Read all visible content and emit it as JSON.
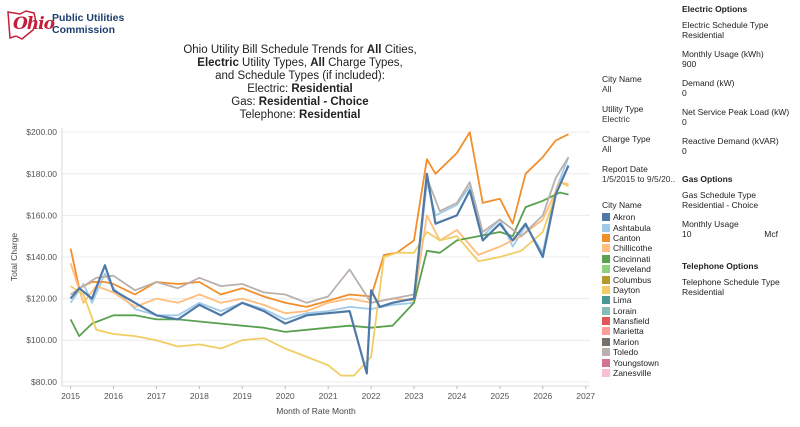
{
  "logo": {
    "mark": "Ohio",
    "line1": "Public Utilities",
    "line2": "Commission"
  },
  "title": {
    "line1a": "Ohio Utility Bill Schedule Trends for ",
    "line1b": "All",
    "line1c": " Cities,",
    "line2a": "Electric",
    "line2b": " Utility Types, ",
    "line2c": "All",
    "line2d": " Charge Types,",
    "line3": "and Schedule Types (if included):",
    "line4a": "Electric: ",
    "line4b": "Residential",
    "line5a": "Gas: ",
    "line5b": "Residential - Choice",
    "line6a": "Telephone: ",
    "line6b": "Residential"
  },
  "filters": [
    {
      "label": "City Name",
      "value": "All"
    },
    {
      "label": "Utility Type",
      "value": "Electric"
    },
    {
      "label": "Charge Type",
      "value": "All"
    },
    {
      "label": "Report Date",
      "value": "1/5/2015 to 9/5/20.."
    }
  ],
  "legend": {
    "title": "City Name",
    "items": [
      {
        "name": "Akron",
        "color": "#4e79a7"
      },
      {
        "name": "Ashtabula",
        "color": "#a0cbe8"
      },
      {
        "name": "Canton",
        "color": "#f28e2b"
      },
      {
        "name": "Chillicothe",
        "color": "#ffbe7d"
      },
      {
        "name": "Cincinnati",
        "color": "#59a14f"
      },
      {
        "name": "Cleveland",
        "color": "#8cd17d"
      },
      {
        "name": "Columbus",
        "color": "#b6992d"
      },
      {
        "name": "Dayton",
        "color": "#f1ce63"
      },
      {
        "name": "Lima",
        "color": "#499894"
      },
      {
        "name": "Lorain",
        "color": "#86bcb6"
      },
      {
        "name": "Mansfield",
        "color": "#e15759"
      },
      {
        "name": "Marietta",
        "color": "#ff9d9a"
      },
      {
        "name": "Marion",
        "color": "#79706e"
      },
      {
        "name": "Toledo",
        "color": "#bab0ac"
      },
      {
        "name": "Youngstown",
        "color": "#d37295"
      },
      {
        "name": "Zanesville",
        "color": "#fabfd2"
      }
    ]
  },
  "options": {
    "electric": {
      "header": "Electric Options",
      "fields": [
        {
          "label": "Electric Schedule Type",
          "value": "Residential"
        },
        {
          "label": "Monthly Usage (kWh)",
          "value": "900"
        },
        {
          "label": "Demand (kW)",
          "value": "0"
        },
        {
          "label": "Net Service Peak Load (kW)",
          "value": "0"
        },
        {
          "label": "Reactive Demand (kVAR)",
          "value": "0"
        }
      ]
    },
    "gas": {
      "header": "Gas Options",
      "schedule_label": "Gas Schedule Type",
      "schedule_value": "Residential - Choice",
      "usage_label": "Monthly Usage",
      "usage_value": "10",
      "usage_unit": "Mcf"
    },
    "telephone": {
      "header": "Telephone Options",
      "schedule_label": "Telephone Schedule Type",
      "schedule_value": "Residential"
    }
  },
  "chart_data": {
    "type": "line",
    "xlabel": "Month of Rate Month",
    "ylabel": "Total Charge",
    "xlim": [
      2014.8,
      2027.1
    ],
    "ylim": [
      78,
      202
    ],
    "y_ticks": [
      80,
      100,
      120,
      140,
      160,
      180,
      200
    ],
    "y_tick_labels": [
      "$80.00",
      "$100.00",
      "$120.00",
      "$140.00",
      "$160.00",
      "$180.00",
      "$200.00"
    ],
    "x_ticks": [
      2015,
      2016,
      2017,
      2018,
      2019,
      2020,
      2021,
      2022,
      2023,
      2024,
      2025,
      2026,
      2027
    ],
    "x_tick_labels": [
      "2015",
      "2016",
      "2017",
      "2018",
      "2019",
      "2020",
      "2021",
      "2022",
      "2023",
      "2024",
      "2025",
      "2026",
      "2027"
    ],
    "grid": "horizontal",
    "series": [
      {
        "name": "Ashtabula",
        "color": "#a0cbe8",
        "x": [
          2015.0,
          2015.3,
          2015.5,
          2015.8,
          2016.0,
          2016.5,
          2017.0,
          2017.5,
          2018.0,
          2018.5,
          2019.0,
          2019.5,
          2020.0,
          2020.5,
          2021.0,
          2021.5,
          2022.0,
          2022.5,
          2023.0,
          2023.3,
          2023.5,
          2024.0,
          2024.3,
          2024.6,
          2025.0,
          2025.3,
          2025.6,
          2026.0,
          2026.3,
          2026.6
        ],
        "y": [
          118,
          127,
          118,
          132,
          125,
          115,
          112,
          112,
          118,
          114,
          118,
          115,
          110,
          113,
          114,
          116,
          115,
          117,
          118,
          176,
          160,
          165,
          174,
          150,
          158,
          145,
          155,
          142,
          172,
          188
        ]
      },
      {
        "name": "Canton",
        "color": "#f28e2b",
        "x": [
          2015.0,
          2015.2,
          2015.5,
          2015.8,
          2016.0,
          2016.5,
          2017.0,
          2017.5,
          2018.0,
          2018.5,
          2019.0,
          2019.5,
          2020.0,
          2020.5,
          2021.0,
          2021.5,
          2022.0,
          2022.3,
          2022.6,
          2023.0,
          2023.3,
          2023.5,
          2024.0,
          2024.3,
          2024.6,
          2025.0,
          2025.3,
          2025.6,
          2026.0,
          2026.3,
          2026.6
        ],
        "y": [
          144,
          125,
          128,
          128,
          127,
          122,
          128,
          127,
          128,
          122,
          125,
          121,
          118,
          116,
          119,
          122,
          121,
          141,
          142,
          148,
          187,
          180,
          190,
          200,
          166,
          168,
          156,
          180,
          188,
          196,
          199
        ]
      },
      {
        "name": "Chillicothe",
        "color": "#ffbe7d",
        "x": [
          2015.0,
          2015.3,
          2015.6,
          2016.0,
          2016.5,
          2017.0,
          2017.5,
          2018.0,
          2018.5,
          2019.0,
          2019.5,
          2020.0,
          2020.5,
          2021.0,
          2021.5,
          2022.0,
          2022.5,
          2023.0,
          2023.3,
          2023.6,
          2024.0,
          2024.5,
          2025.0,
          2025.5,
          2026.0,
          2026.4,
          2026.6
        ],
        "y": [
          137,
          118,
          126,
          123,
          116,
          120,
          118,
          122,
          118,
          120,
          117,
          113,
          114,
          118,
          120,
          118,
          120,
          119,
          160,
          148,
          153,
          141,
          145,
          150,
          158,
          176,
          175
        ]
      },
      {
        "name": "Cincinnati",
        "color": "#59a14f",
        "x": [
          2015.0,
          2015.2,
          2015.5,
          2016.0,
          2016.5,
          2017.0,
          2017.5,
          2018.0,
          2018.5,
          2019.0,
          2019.5,
          2020.0,
          2020.5,
          2021.0,
          2021.5,
          2022.0,
          2022.5,
          2023.0,
          2023.3,
          2023.6,
          2024.0,
          2024.5,
          2025.0,
          2025.3,
          2025.6,
          2026.0,
          2026.4,
          2026.6
        ],
        "y": [
          110,
          102,
          108,
          112,
          112,
          110,
          110,
          109,
          108,
          107,
          106,
          104,
          105,
          106,
          107,
          106,
          107,
          118,
          143,
          142,
          148,
          150,
          152,
          150,
          164,
          167,
          171,
          170
        ]
      },
      {
        "name": "Dayton",
        "color": "#f1ce63",
        "x": [
          2015.0,
          2015.3,
          2015.6,
          2016.0,
          2016.5,
          2017.0,
          2017.5,
          2018.0,
          2018.5,
          2019.0,
          2019.5,
          2020.0,
          2020.5,
          2021.0,
          2021.3,
          2021.6,
          2022.0,
          2022.3,
          2022.6,
          2023.0,
          2023.3,
          2023.6,
          2024.0,
          2024.5,
          2025.0,
          2025.5,
          2026.0,
          2026.4,
          2026.6
        ],
        "y": [
          126,
          122,
          105,
          103,
          102,
          100,
          97,
          98,
          96,
          100,
          101,
          96,
          92,
          88,
          83,
          83,
          92,
          140,
          142,
          142,
          152,
          148,
          150,
          138,
          140,
          143,
          152,
          176,
          174
        ]
      },
      {
        "name": "Toledo",
        "color": "#bab0ac",
        "x": [
          2015.0,
          2015.3,
          2015.6,
          2016.0,
          2016.5,
          2017.0,
          2017.5,
          2018.0,
          2018.5,
          2019.0,
          2019.5,
          2020.0,
          2020.5,
          2021.0,
          2021.5,
          2022.0,
          2022.5,
          2023.0,
          2023.3,
          2023.6,
          2024.0,
          2024.3,
          2024.6,
          2025.0,
          2025.5,
          2026.0,
          2026.3,
          2026.6
        ],
        "y": [
          122,
          126,
          130,
          131,
          124,
          128,
          125,
          130,
          126,
          127,
          123,
          122,
          118,
          121,
          134,
          118,
          120,
          122,
          178,
          162,
          166,
          176,
          152,
          158,
          150,
          160,
          178,
          188
        ]
      },
      {
        "name": "Akron",
        "color": "#4e79a7",
        "x": [
          2015.0,
          2015.2,
          2015.5,
          2015.8,
          2016.0,
          2016.5,
          2017.0,
          2017.5,
          2018.0,
          2018.5,
          2019.0,
          2019.5,
          2020.0,
          2020.5,
          2021.0,
          2021.5,
          2021.9,
          2022.0,
          2022.2,
          2022.5,
          2023.0,
          2023.3,
          2023.5,
          2024.0,
          2024.3,
          2024.6,
          2025.0,
          2025.3,
          2025.6,
          2026.0,
          2026.3,
          2026.6
        ],
        "y": [
          120,
          125,
          120,
          136,
          124,
          118,
          112,
          110,
          117,
          112,
          118,
          114,
          108,
          112,
          113,
          114,
          84,
          124,
          116,
          118,
          120,
          180,
          156,
          160,
          172,
          148,
          156,
          148,
          156,
          140,
          170,
          184
        ]
      }
    ]
  }
}
